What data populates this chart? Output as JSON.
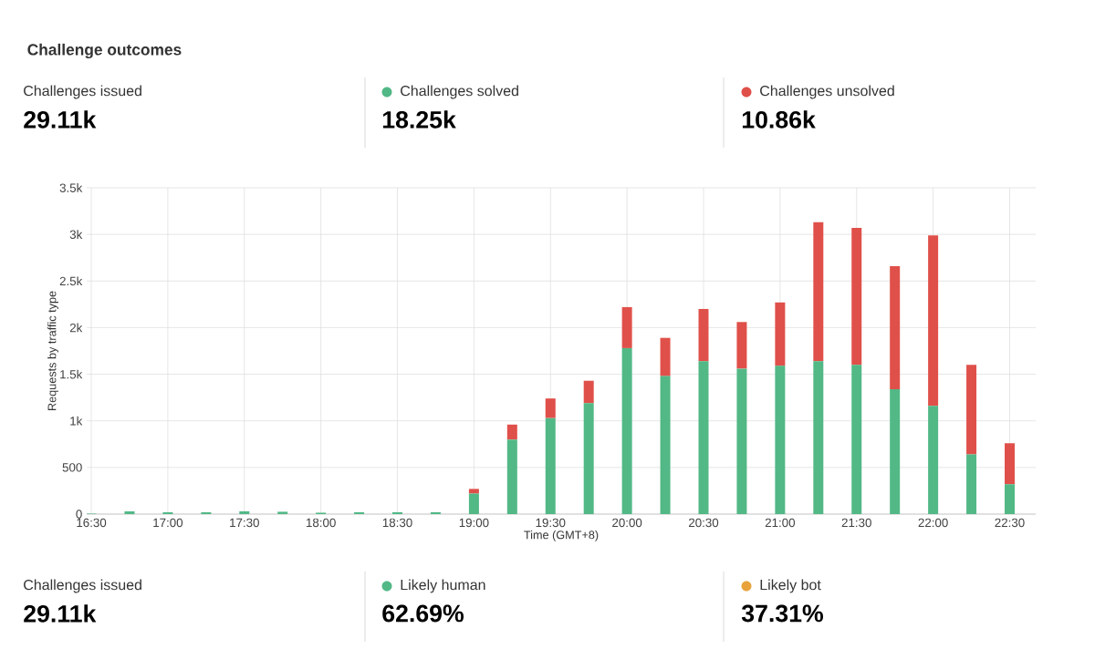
{
  "chart_data": {
    "type": "bar",
    "title": "Challenge outcomes",
    "xlabel": "Time (GMT+8)",
    "ylabel": "Requests by traffic type",
    "stacked": true,
    "grid": true,
    "legend": "top",
    "x": [
      16.5,
      16.75,
      17,
      17.25,
      17.5,
      17.75,
      18,
      18.25,
      18.5,
      18.75,
      19,
      19.25,
      19.5,
      19.75,
      20,
      20.25,
      20.5,
      20.75,
      21,
      21.25,
      21.5,
      21.75,
      22,
      22.25,
      22.5
    ],
    "series": [
      {
        "name": "Challenges solved",
        "color": "#52b886",
        "values": [
          5,
          30,
          20,
          20,
          30,
          25,
          15,
          20,
          20,
          20,
          220,
          800,
          1030,
          1190,
          1780,
          1480,
          1640,
          1560,
          1590,
          1640,
          1600,
          1340,
          1160,
          640,
          320
        ]
      },
      {
        "name": "Challenges unsolved",
        "color": "#e0504a",
        "values": [
          0,
          0,
          0,
          0,
          0,
          0,
          0,
          0,
          0,
          0,
          50,
          160,
          210,
          240,
          440,
          410,
          560,
          500,
          680,
          1490,
          1470,
          1320,
          1830,
          960,
          440
        ]
      }
    ],
    "xlim": [
      16.47,
      22.67
    ],
    "ylim": [
      0,
      3500
    ],
    "xticks": [
      {
        "value": 16.5,
        "label": "16:30"
      },
      {
        "value": 17,
        "label": "17:00"
      },
      {
        "value": 17.5,
        "label": "17:30"
      },
      {
        "value": 18,
        "label": "18:00"
      },
      {
        "value": 18.5,
        "label": "18:30"
      },
      {
        "value": 19,
        "label": "19:00"
      },
      {
        "value": 19.5,
        "label": "19:30"
      },
      {
        "value": 20,
        "label": "20:00"
      },
      {
        "value": 20.5,
        "label": "20:30"
      },
      {
        "value": 21,
        "label": "21:00"
      },
      {
        "value": 21.5,
        "label": "21:30"
      },
      {
        "value": 22,
        "label": "22:00"
      },
      {
        "value": 22.5,
        "label": "22:30"
      }
    ],
    "yticks": [
      0,
      500,
      {
        "value": 1000,
        "label": "1k"
      },
      {
        "value": 1500,
        "label": "1.5k"
      },
      {
        "value": 2000,
        "label": "2k"
      },
      {
        "value": 2500,
        "label": "2.5k"
      },
      {
        "value": 3000,
        "label": "3k"
      },
      {
        "value": 3500,
        "label": "3.5k"
      }
    ],
    "annotations": [
      "Challenges issued",
      "29.11k",
      "18.25k",
      "10.86k",
      "Challenges issued",
      "29.11k",
      "Likely human",
      "62.69%",
      "Likely bot",
      "37.31%"
    ]
  }
}
